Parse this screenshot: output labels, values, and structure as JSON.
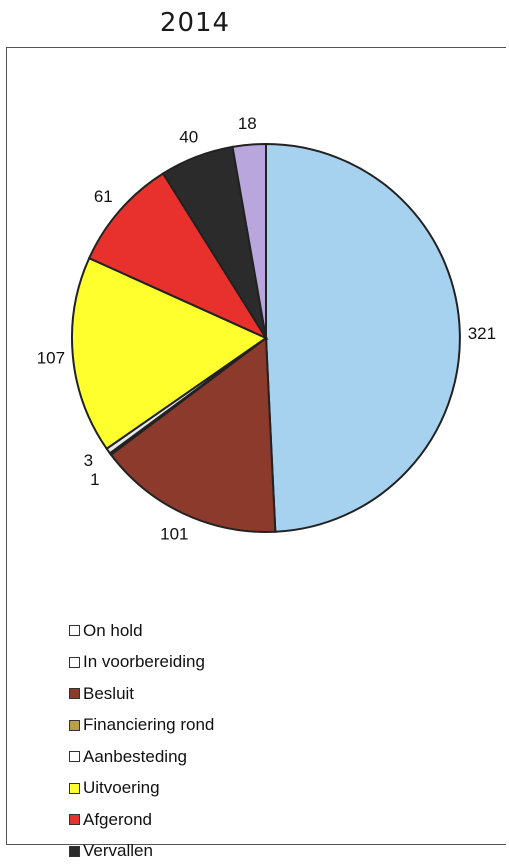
{
  "page_title": "2014",
  "chart_data": {
    "type": "pie",
    "title": "2014",
    "start_angle_deg": 0,
    "direction": "clockwise",
    "slices": [
      {
        "label": "On hold",
        "value": 321,
        "data_label": "321",
        "color": "#a6d2ef"
      },
      {
        "label": "In voorbereiding",
        "value": 101,
        "data_label": "101",
        "color": "#8b3a2c"
      },
      {
        "label": "Besluit",
        "value": 1,
        "data_label": "1",
        "color": "#d8c8a8"
      },
      {
        "label": "Financiering rond",
        "value": 3,
        "data_label": "3",
        "color": "#e8e8e8"
      },
      {
        "label": "Aanbesteding",
        "value": 107,
        "data_label": "107",
        "color": "#ffff2e"
      },
      {
        "label": "Uitvoering",
        "value": 61,
        "data_label": "61",
        "color": "#e8312c"
      },
      {
        "label": "Afgerond",
        "value": 40,
        "data_label": "40",
        "color": "#2b2b2b"
      },
      {
        "label": "Vervallen",
        "value": 18,
        "data_label": "18",
        "color": "#b8a6dc"
      }
    ],
    "legend": {
      "position": "bottom-left",
      "entries": [
        {
          "label": "On hold",
          "color": "#ffffff"
        },
        {
          "label": "In voorbereiding",
          "color": "#ffffff"
        },
        {
          "label": "Besluit",
          "color": "#8b3a2c"
        },
        {
          "label": "Financiering rond",
          "color": "#b8a046"
        },
        {
          "label": "Aanbesteding",
          "color": "#ffffff"
        },
        {
          "label": "Uitvoering",
          "color": "#ffff2e"
        },
        {
          "label": "Afgerond",
          "color": "#e8312c"
        },
        {
          "label": "Vervallen",
          "color": "#2b2b2b"
        }
      ]
    }
  }
}
